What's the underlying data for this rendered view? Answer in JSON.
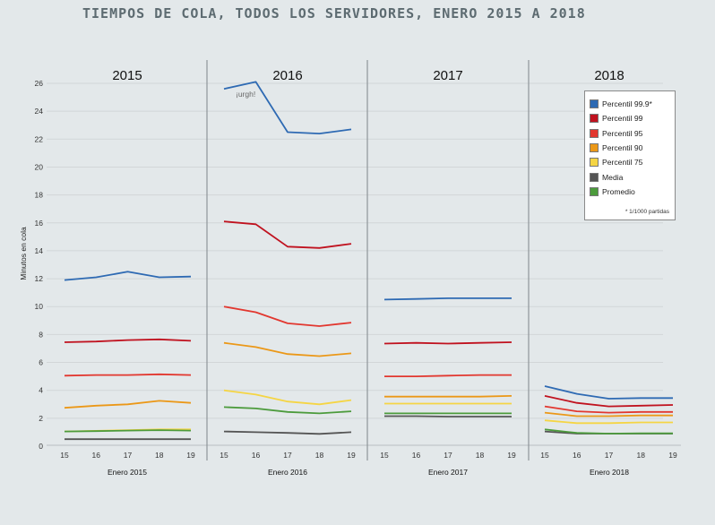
{
  "title": "TIEMPOS DE COLA, TODOS LOS SERVIDORES, ENERO 2015 A 2018",
  "legend_note": "* 1/1000 partidas",
  "chart_data": {
    "type": "line",
    "title": "TIEMPOS DE COLA, TODOS LOS SERVIDORES, ENERO 2015 A 2018",
    "ylabel": "Minutos en cola",
    "ylim": [
      0,
      26
    ],
    "yticks": [
      0,
      2,
      4,
      6,
      8,
      10,
      12,
      14,
      16,
      18,
      20,
      22,
      24,
      26
    ],
    "x": [
      "15",
      "16",
      "17",
      "18",
      "19"
    ],
    "grid": true,
    "legend_position": "top-right",
    "annotation": {
      "text": "¡urgh!",
      "panel": "2016",
      "near_series": "Percentil 99.9*"
    },
    "panels": [
      {
        "header": "2015",
        "xlabel": "Enero 2015",
        "series": [
          {
            "name": "Percentil 99.9*",
            "color": "#2e6ab3",
            "values": [
              11.9,
              12.1,
              12.5,
              12.1,
              12.15
            ]
          },
          {
            "name": "Percentil 99",
            "color": "#c0121f",
            "values": [
              7.45,
              7.5,
              7.6,
              7.65,
              7.55
            ]
          },
          {
            "name": "Percentil 95",
            "color": "#e2372f",
            "values": [
              5.05,
              5.1,
              5.1,
              5.15,
              5.1
            ]
          },
          {
            "name": "Percentil 90",
            "color": "#eb9818",
            "values": [
              2.75,
              2.9,
              3.0,
              3.25,
              3.1
            ]
          },
          {
            "name": "Percentil 75",
            "color": "#f5d544",
            "values": [
              1.05,
              1.1,
              1.15,
              1.2,
              1.2
            ]
          },
          {
            "name": "Media",
            "color": "#555555",
            "values": [
              0.5,
              0.5,
              0.5,
              0.5,
              0.5
            ]
          },
          {
            "name": "Promedio",
            "color": "#4c9b3c",
            "values": [
              1.05,
              1.08,
              1.12,
              1.15,
              1.12
            ]
          }
        ]
      },
      {
        "header": "2016",
        "xlabel": "Enero 2016",
        "series": [
          {
            "name": "Percentil 99.9*",
            "color": "#2e6ab3",
            "values": [
              25.6,
              26.1,
              22.5,
              22.4,
              22.7
            ]
          },
          {
            "name": "Percentil 99",
            "color": "#c0121f",
            "values": [
              16.1,
              15.9,
              14.3,
              14.2,
              14.5
            ]
          },
          {
            "name": "Percentil 95",
            "color": "#e2372f",
            "values": [
              10.0,
              9.6,
              8.8,
              8.6,
              8.85
            ]
          },
          {
            "name": "Percentil 90",
            "color": "#eb9818",
            "values": [
              7.4,
              7.1,
              6.6,
              6.45,
              6.65
            ]
          },
          {
            "name": "Percentil 75",
            "color": "#f5d544",
            "values": [
              4.0,
              3.7,
              3.2,
              3.0,
              3.3
            ]
          },
          {
            "name": "Media",
            "color": "#555555",
            "values": [
              1.05,
              1.0,
              0.95,
              0.88,
              1.0
            ]
          },
          {
            "name": "Promedio",
            "color": "#4c9b3c",
            "values": [
              2.8,
              2.7,
              2.45,
              2.35,
              2.5
            ]
          }
        ]
      },
      {
        "header": "2017",
        "xlabel": "Enero 2017",
        "series": [
          {
            "name": "Percentil 99.9*",
            "color": "#2e6ab3",
            "values": [
              10.5,
              10.55,
              10.6,
              10.6,
              10.6
            ]
          },
          {
            "name": "Percentil 99",
            "color": "#c0121f",
            "values": [
              7.35,
              7.4,
              7.35,
              7.4,
              7.45
            ]
          },
          {
            "name": "Percentil 95",
            "color": "#e2372f",
            "values": [
              5.0,
              5.0,
              5.05,
              5.1,
              5.1
            ]
          },
          {
            "name": "Percentil 90",
            "color": "#eb9818",
            "values": [
              3.55,
              3.55,
              3.55,
              3.55,
              3.6
            ]
          },
          {
            "name": "Percentil 75",
            "color": "#f5d544",
            "values": [
              3.05,
              3.05,
              3.05,
              3.05,
              3.05
            ]
          },
          {
            "name": "Media",
            "color": "#555555",
            "values": [
              2.15,
              2.15,
              2.12,
              2.12,
              2.12
            ]
          },
          {
            "name": "Promedio",
            "color": "#4c9b3c",
            "values": [
              2.35,
              2.35,
              2.35,
              2.35,
              2.35
            ]
          }
        ]
      },
      {
        "header": "2018",
        "xlabel": "Enero 2018",
        "series": [
          {
            "name": "Percentil 99.9*",
            "color": "#2e6ab3",
            "values": [
              4.3,
              3.75,
              3.4,
              3.45,
              3.45
            ]
          },
          {
            "name": "Percentil 99",
            "color": "#c0121f",
            "values": [
              3.6,
              3.1,
              2.85,
              2.9,
              2.95
            ]
          },
          {
            "name": "Percentil 95",
            "color": "#e2372f",
            "values": [
              2.85,
              2.5,
              2.4,
              2.45,
              2.45
            ]
          },
          {
            "name": "Percentil 90",
            "color": "#eb9818",
            "values": [
              2.4,
              2.15,
              2.15,
              2.2,
              2.2
            ]
          },
          {
            "name": "Percentil 75",
            "color": "#f5d544",
            "values": [
              1.85,
              1.65,
              1.65,
              1.7,
              1.7
            ]
          },
          {
            "name": "Media",
            "color": "#555555",
            "values": [
              1.05,
              0.9,
              0.9,
              0.9,
              0.9
            ]
          },
          {
            "name": "Promedio",
            "color": "#4c9b3c",
            "values": [
              1.2,
              0.95,
              0.9,
              0.92,
              0.92
            ]
          }
        ]
      }
    ]
  }
}
